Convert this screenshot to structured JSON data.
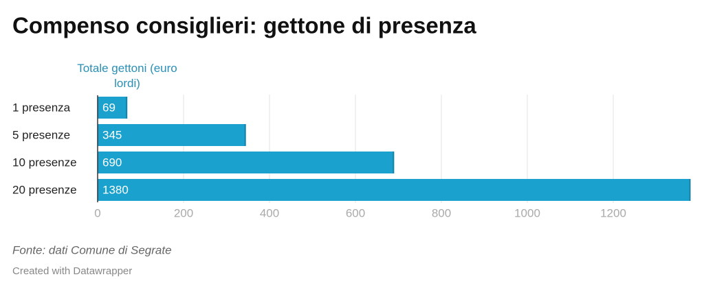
{
  "chart_data": {
    "type": "bar",
    "orientation": "horizontal",
    "title": "Compenso consiglieri: gettone di presenza",
    "value_label": "Totale gettoni (euro lordi)",
    "categories": [
      "1 presenza",
      "5 presenze",
      "10 presenze",
      "20 presenze"
    ],
    "values": [
      69,
      345,
      690,
      1380
    ],
    "color": "#1aa1cd",
    "xlim": [
      0,
      1380
    ],
    "xticks": [
      0,
      200,
      400,
      600,
      800,
      1000,
      1200
    ],
    "grid": true,
    "source": "Fonte: dati Comune di Segrate",
    "credit": "Created with Datawrapper"
  }
}
